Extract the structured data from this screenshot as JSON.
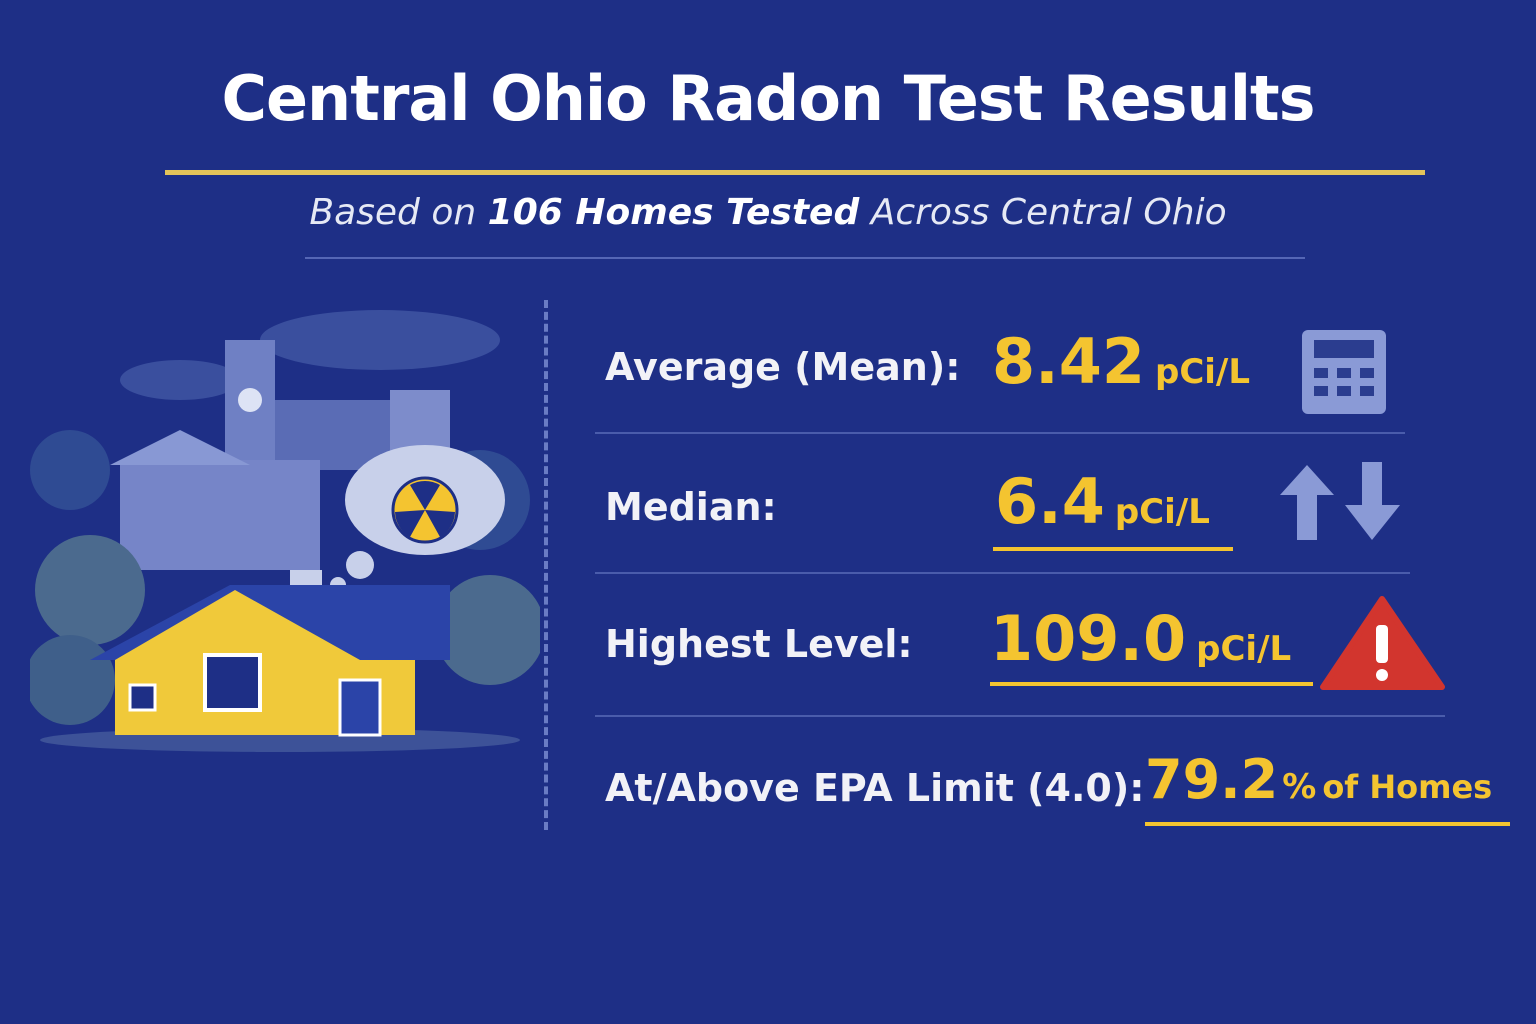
{
  "header": {
    "title": "Central Ohio Radon Test Results",
    "subtitle": {
      "lead": "Based on",
      "emphasis": "106 Homes Tested",
      "tail": "Across Central Ohio"
    }
  },
  "stats": [
    {
      "label": "Average (Mean):",
      "value": "8.42",
      "unit": "pCi/L"
    },
    {
      "label": "Median:",
      "value": "6.4",
      "unit": "pCi/L"
    },
    {
      "label": "Highest Level:",
      "value": "109.0",
      "unit": "pCi/L"
    },
    {
      "label": "At/Above EPA Limit (4.0):",
      "value": "79.2",
      "unit": "%",
      "suffix": "of Homes"
    }
  ]
}
